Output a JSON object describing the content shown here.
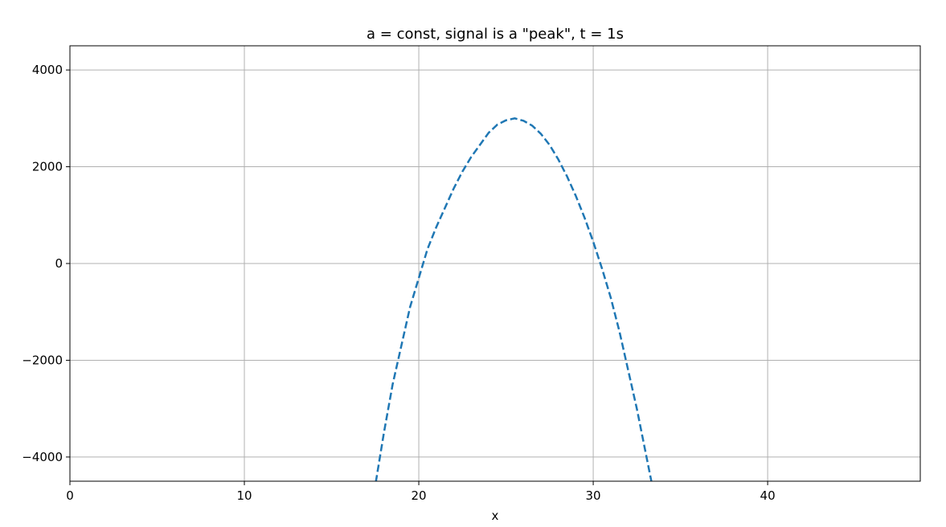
{
  "chart_data": {
    "type": "line",
    "title": "a = const, signal is a \"peak\", t = 1s",
    "xlabel": "x",
    "ylabel": "",
    "xlim": [
      0,
      48.75
    ],
    "ylim": [
      -4500,
      4500
    ],
    "xticks": [
      0,
      10,
      20,
      30,
      40
    ],
    "yticks": [
      -4000,
      -2000,
      0,
      2000,
      4000
    ],
    "xtick_labels": [
      "0",
      "10",
      "20",
      "30",
      "40"
    ],
    "ytick_labels": [
      "−4000",
      "−2000",
      "0",
      "2000",
      "4000"
    ],
    "grid": true,
    "legend": "none",
    "series": [
      {
        "color": "#1f77b4",
        "linestyle": "dashed",
        "x": [
          17.0,
          17.5,
          18.0,
          18.5,
          19.0,
          19.5,
          20.0,
          20.5,
          21.0,
          21.5,
          22.0,
          22.5,
          23.0,
          23.5,
          24.0,
          24.5,
          25.0,
          25.5,
          26.0,
          26.5,
          27.0,
          27.5,
          28.0,
          28.5,
          29.0,
          29.5,
          30.0,
          30.5,
          31.0,
          31.5,
          32.0,
          32.5,
          33.0,
          33.5,
          34.0
        ],
        "y": [
          -5800,
          -4600,
          -3500,
          -2500,
          -1700,
          -900,
          -300,
          300,
          750,
          1150,
          1550,
          1900,
          2200,
          2450,
          2700,
          2870,
          2960,
          3000,
          2950,
          2850,
          2680,
          2450,
          2150,
          1800,
          1400,
          950,
          450,
          -100,
          -700,
          -1400,
          -2200,
          -3000,
          -3900,
          -4800,
          -5800
        ]
      }
    ]
  }
}
